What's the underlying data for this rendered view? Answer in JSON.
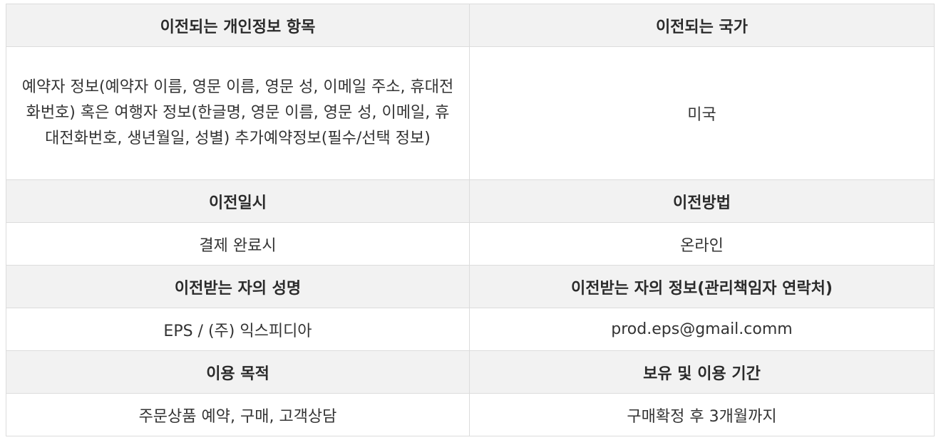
{
  "rows": [
    {
      "headers": [
        "이전되는 개인정보 항목",
        "이전되는 국가"
      ],
      "values": [
        "예약자 정보(예약자 이름, 영문 이름, 영문 성, 이메일 주소, 휴대전화번호) 혹은 여행자 정보(한글명, 영문 이름, 영문 성, 이메일, 휴대전화번호, 생년월일, 성별) 추가예약정보(필수/선택 정보)",
        "미국"
      ]
    },
    {
      "headers": [
        "이전일시",
        "이전방법"
      ],
      "values": [
        "결제 완료시",
        "온라인"
      ]
    },
    {
      "headers": [
        "이전받는 자의 성명",
        "이전받는 자의 정보(관리책임자 연락처)"
      ],
      "values": [
        "EPS / (주) 익스피디아",
        "prod.eps@gmail.comm"
      ]
    },
    {
      "headers": [
        "이용 목적",
        "보유 및 이용 기간"
      ],
      "values": [
        "주문상품 예약, 구매, 고객상담",
        "구매확정 후 3개월까지"
      ]
    }
  ]
}
